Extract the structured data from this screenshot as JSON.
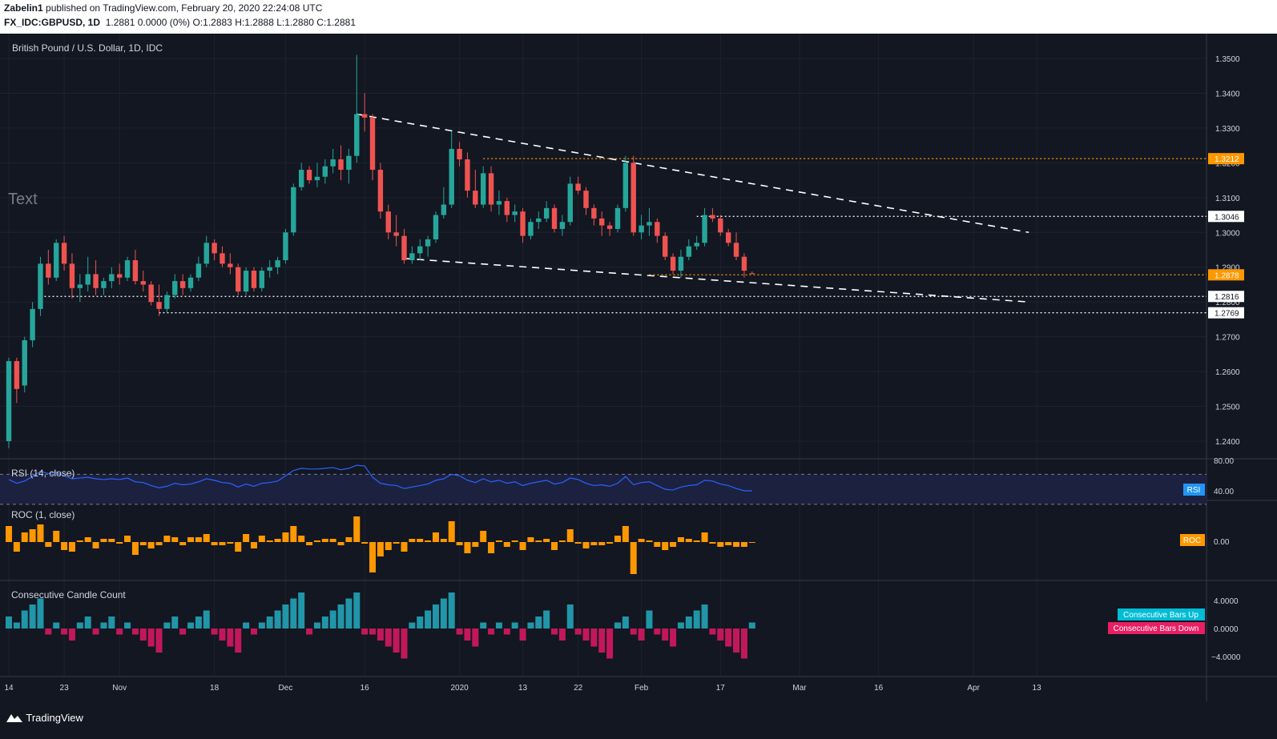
{
  "header": {
    "author": "Zabelin1",
    "published_text": "published on TradingView.com, February 20, 2020 22:24:08 UTC",
    "symbol_line": {
      "symbol": "FX_IDC:GBPUSD, 1D",
      "change": "1.2881 0.0000 (0%)",
      "open_label": "O:",
      "open": "1.2883",
      "high_label": "H:",
      "high": "1.2888",
      "low_label": "L:",
      "low": "1.2880",
      "close_label": "C:",
      "close": "1.2881"
    }
  },
  "main_pane": {
    "title": "British Pound / U.S. Dollar, 1D, IDC",
    "annotation_text": "Text",
    "price_ticks": [
      "1.2400",
      "1.2500",
      "1.2600",
      "1.2700",
      "1.2800",
      "1.2900",
      "1.3000",
      "1.3100",
      "1.3200",
      "1.3300",
      "1.3400",
      "1.3500"
    ],
    "price_labels": [
      {
        "value": 1.3212,
        "text": "1.3212",
        "style": "orange"
      },
      {
        "value": 1.3046,
        "text": "1.3046",
        "style": "white"
      },
      {
        "value": 1.2878,
        "text": "1.2878",
        "style": "orange"
      },
      {
        "value": 1.2816,
        "text": "1.2816",
        "style": "white"
      },
      {
        "value": 1.2769,
        "text": "1.2769",
        "style": "white"
      }
    ]
  },
  "rsi_pane": {
    "title": "RSI (14, close)",
    "tag": "RSI",
    "ticks": [
      "80.00",
      "40.00"
    ]
  },
  "roc_pane": {
    "title": "ROC (1, close)",
    "tag": "ROC",
    "ticks": [
      "0.00"
    ]
  },
  "ccc_pane": {
    "title": "Consecutive Candle Count",
    "legend_up": "Consecutive Bars Up",
    "legend_down": "Consecutive Bars Down",
    "ticks": [
      "4.0000",
      "0.0000",
      "−4.0000"
    ]
  },
  "time_axis": {
    "labels": [
      {
        "text": "14",
        "bar": 0
      },
      {
        "text": "23",
        "bar": 7
      },
      {
        "text": "Nov",
        "bar": 14
      },
      {
        "text": "18",
        "bar": 26
      },
      {
        "text": "Dec",
        "bar": 35
      },
      {
        "text": "16",
        "bar": 45
      },
      {
        "text": "2020",
        "bar": 57
      },
      {
        "text": "13",
        "bar": 65
      },
      {
        "text": "22",
        "bar": 72
      },
      {
        "text": "Feb",
        "bar": 80
      },
      {
        "text": "17",
        "bar": 90
      },
      {
        "text": "Mar",
        "bar": 100
      },
      {
        "text": "16",
        "bar": 110
      },
      {
        "text": "Apr",
        "bar": 122
      },
      {
        "text": "13",
        "bar": 130
      }
    ]
  },
  "colors": {
    "up": "#26a69a",
    "down": "#ef5350",
    "orange": "#ff9800",
    "rsi": "#2962ff",
    "ccc_up": "#2196a8",
    "ccc_down": "#c2185b",
    "background": "#131722"
  },
  "footer": {
    "brand": "TradingView"
  },
  "chart_data": {
    "type": "candlestick",
    "symbol": "GBPUSD",
    "interval": "1D",
    "ylim": [
      1.24,
      1.352
    ],
    "bars": [
      [
        1.24,
        1.264,
        1.238,
        1.263
      ],
      [
        1.263,
        1.264,
        1.251,
        1.255
      ],
      [
        1.256,
        1.27,
        1.254,
        1.269
      ],
      [
        1.269,
        1.28,
        1.267,
        1.278
      ],
      [
        1.278,
        1.293,
        1.276,
        1.291
      ],
      [
        1.291,
        1.295,
        1.285,
        1.287
      ],
      [
        1.287,
        1.298,
        1.286,
        1.297
      ],
      [
        1.297,
        1.299,
        1.289,
        1.291
      ],
      [
        1.291,
        1.294,
        1.281,
        1.284
      ],
      [
        1.284,
        1.288,
        1.28,
        1.285
      ],
      [
        1.285,
        1.293,
        1.283,
        1.288
      ],
      [
        1.288,
        1.292,
        1.282,
        1.284
      ],
      [
        1.284,
        1.287,
        1.282,
        1.286
      ],
      [
        1.286,
        1.29,
        1.284,
        1.288
      ],
      [
        1.288,
        1.291,
        1.285,
        1.287
      ],
      [
        1.287,
        1.293,
        1.286,
        1.292
      ],
      [
        1.292,
        1.295,
        1.285,
        1.286
      ],
      [
        1.286,
        1.289,
        1.283,
        1.285
      ],
      [
        1.285,
        1.286,
        1.279,
        1.28
      ],
      [
        1.28,
        1.285,
        1.276,
        1.278
      ],
      [
        1.278,
        1.283,
        1.277,
        1.282
      ],
      [
        1.282,
        1.288,
        1.281,
        1.286
      ],
      [
        1.286,
        1.288,
        1.282,
        1.284
      ],
      [
        1.284,
        1.288,
        1.283,
        1.287
      ],
      [
        1.287,
        1.293,
        1.286,
        1.291
      ],
      [
        1.291,
        1.299,
        1.29,
        1.297
      ],
      [
        1.297,
        1.298,
        1.292,
        1.294
      ],
      [
        1.294,
        1.296,
        1.29,
        1.291
      ],
      [
        1.291,
        1.294,
        1.288,
        1.29
      ],
      [
        1.29,
        1.291,
        1.282,
        1.283
      ],
      [
        1.283,
        1.29,
        1.282,
        1.289
      ],
      [
        1.289,
        1.29,
        1.283,
        1.284
      ],
      [
        1.284,
        1.29,
        1.283,
        1.289
      ],
      [
        1.289,
        1.292,
        1.287,
        1.29
      ],
      [
        1.29,
        1.293,
        1.288,
        1.292
      ],
      [
        1.292,
        1.301,
        1.291,
        1.3
      ],
      [
        1.3,
        1.314,
        1.299,
        1.313
      ],
      [
        1.313,
        1.32,
        1.312,
        1.318
      ],
      [
        1.318,
        1.319,
        1.314,
        1.315
      ],
      [
        1.315,
        1.32,
        1.313,
        1.316
      ],
      [
        1.316,
        1.321,
        1.314,
        1.319
      ],
      [
        1.319,
        1.324,
        1.317,
        1.321
      ],
      [
        1.321,
        1.325,
        1.315,
        1.318
      ],
      [
        1.318,
        1.324,
        1.314,
        1.322
      ],
      [
        1.322,
        1.351,
        1.32,
        1.334
      ],
      [
        1.334,
        1.34,
        1.329,
        1.333
      ],
      [
        1.333,
        1.334,
        1.315,
        1.318
      ],
      [
        1.318,
        1.32,
        1.304,
        1.306
      ],
      [
        1.306,
        1.308,
        1.298,
        1.3
      ],
      [
        1.3,
        1.305,
        1.296,
        1.299
      ],
      [
        1.299,
        1.301,
        1.291,
        1.292
      ],
      [
        1.292,
        1.296,
        1.291,
        1.294
      ],
      [
        1.294,
        1.298,
        1.292,
        1.296
      ],
      [
        1.296,
        1.299,
        1.293,
        1.298
      ],
      [
        1.298,
        1.306,
        1.297,
        1.305
      ],
      [
        1.305,
        1.313,
        1.304,
        1.308
      ],
      [
        1.308,
        1.329,
        1.307,
        1.324
      ],
      [
        1.324,
        1.326,
        1.319,
        1.321
      ],
      [
        1.321,
        1.323,
        1.31,
        1.312
      ],
      [
        1.312,
        1.318,
        1.307,
        1.308
      ],
      [
        1.308,
        1.319,
        1.307,
        1.317
      ],
      [
        1.317,
        1.319,
        1.306,
        1.308
      ],
      [
        1.308,
        1.312,
        1.305,
        1.309
      ],
      [
        1.309,
        1.31,
        1.303,
        1.305
      ],
      [
        1.305,
        1.308,
        1.303,
        1.306
      ],
      [
        1.306,
        1.307,
        1.297,
        1.299
      ],
      [
        1.299,
        1.304,
        1.298,
        1.303
      ],
      [
        1.303,
        1.306,
        1.301,
        1.304
      ],
      [
        1.304,
        1.309,
        1.303,
        1.307
      ],
      [
        1.307,
        1.308,
        1.3,
        1.301
      ],
      [
        1.301,
        1.305,
        1.299,
        1.303
      ],
      [
        1.303,
        1.316,
        1.302,
        1.314
      ],
      [
        1.314,
        1.316,
        1.311,
        1.312
      ],
      [
        1.312,
        1.313,
        1.305,
        1.307
      ],
      [
        1.307,
        1.308,
        1.302,
        1.304
      ],
      [
        1.304,
        1.306,
        1.299,
        1.302
      ],
      [
        1.302,
        1.303,
        1.299,
        1.301
      ],
      [
        1.301,
        1.308,
        1.3,
        1.307
      ],
      [
        1.307,
        1.322,
        1.306,
        1.32
      ],
      [
        1.32,
        1.322,
        1.299,
        1.3
      ],
      [
        1.3,
        1.305,
        1.298,
        1.302
      ],
      [
        1.302,
        1.307,
        1.299,
        1.303
      ],
      [
        1.303,
        1.304,
        1.297,
        1.299
      ],
      [
        1.299,
        1.3,
        1.292,
        1.293
      ],
      [
        1.293,
        1.294,
        1.288,
        1.289
      ],
      [
        1.289,
        1.295,
        1.287,
        1.293
      ],
      [
        1.293,
        1.298,
        1.292,
        1.296
      ],
      [
        1.296,
        1.299,
        1.295,
        1.297
      ],
      [
        1.297,
        1.307,
        1.296,
        1.305
      ],
      [
        1.305,
        1.307,
        1.303,
        1.304
      ],
      [
        1.304,
        1.305,
        1.299,
        1.3
      ],
      [
        1.3,
        1.301,
        1.296,
        1.297
      ],
      [
        1.297,
        1.3,
        1.292,
        1.293
      ],
      [
        1.293,
        1.294,
        1.287,
        1.289
      ],
      [
        1.2883,
        1.2888,
        1.288,
        1.2881
      ]
    ],
    "trendlines": [
      {
        "from_bar": 44,
        "from_price": 1.334,
        "to_bar": 129,
        "to_price": 1.3,
        "style": "white-dashed"
      },
      {
        "from_bar": 50,
        "from_price": 1.2925,
        "to_bar": 129,
        "to_price": 1.28,
        "style": "white-dashed"
      }
    ],
    "horizontal_levels": [
      {
        "from_bar": 60,
        "value": 1.3212,
        "style": "orange-dotted"
      },
      {
        "from_bar": 87,
        "value": 1.3046,
        "style": "white-dotted"
      },
      {
        "from_bar": 81,
        "value": 1.2878,
        "style": "orange-dotted"
      },
      {
        "from_bar": 4,
        "value": 1.2816,
        "style": "white-dotted"
      },
      {
        "from_bar": 19,
        "value": 1.2769,
        "style": "white-dotted"
      }
    ],
    "rsi": [
      63,
      58,
      61,
      67,
      74,
      71,
      73,
      68,
      64,
      65,
      66,
      64,
      63,
      64,
      63,
      65,
      60,
      59,
      55,
      52,
      54,
      58,
      56,
      57,
      60,
      64,
      62,
      59,
      58,
      53,
      57,
      54,
      58,
      59,
      61,
      68,
      75,
      78,
      77,
      77,
      78,
      79,
      76,
      78,
      82,
      81,
      66,
      58,
      56,
      55,
      51,
      53,
      55,
      57,
      62,
      64,
      70,
      68,
      62,
      59,
      64,
      60,
      62,
      58,
      60,
      55,
      58,
      60,
      62,
      57,
      59,
      65,
      63,
      58,
      55,
      56,
      54,
      58,
      67,
      56,
      59,
      60,
      55,
      50,
      49,
      53,
      55,
      56,
      62,
      61,
      57,
      55,
      51,
      48,
      48
    ],
    "rsi_levels": [
      70,
      30
    ],
    "roc": [
      1.0,
      -0.6,
      0.6,
      0.8,
      1.1,
      -0.3,
      0.7,
      -0.5,
      -0.6,
      0.1,
      0.3,
      -0.4,
      0.2,
      0.2,
      -0.1,
      0.4,
      -0.8,
      -0.2,
      -0.4,
      -0.2,
      0.4,
      0.3,
      -0.2,
      0.3,
      0.3,
      0.5,
      -0.2,
      -0.2,
      -0.1,
      -0.6,
      0.5,
      -0.4,
      0.4,
      0.1,
      0.2,
      0.6,
      1.0,
      0.4,
      -0.2,
      0.1,
      0.2,
      0.2,
      -0.2,
      0.3,
      1.6,
      -0.1,
      -1.9,
      -0.9,
      -0.5,
      -0.1,
      -0.6,
      0.2,
      0.2,
      0.1,
      0.6,
      0.2,
      1.3,
      -0.2,
      -0.7,
      -0.3,
      0.7,
      -0.7,
      0.1,
      -0.3,
      0.1,
      -0.5,
      0.3,
      0.1,
      0.2,
      -0.5,
      0.1,
      0.8,
      -0.1,
      -0.4,
      -0.2,
      -0.2,
      -0.1,
      0.4,
      1.0,
      -2.0,
      0.2,
      0.1,
      -0.3,
      -0.5,
      -0.3,
      0.3,
      0.2,
      0.1,
      0.6,
      -0.1,
      -0.3,
      -0.2,
      -0.3,
      -0.3,
      0.0
    ],
    "ccc": [
      2,
      1,
      3,
      4,
      5,
      -1,
      1,
      -1,
      -2,
      1,
      2,
      -1,
      1,
      2,
      -1,
      1,
      -1,
      -2,
      -3,
      -4,
      1,
      2,
      -1,
      1,
      2,
      3,
      -1,
      -2,
      -3,
      -4,
      1,
      -1,
      1,
      2,
      3,
      4,
      5,
      6,
      -1,
      1,
      2,
      3,
      4,
      5,
      6,
      -1,
      -1,
      -2,
      -3,
      -4,
      -5,
      1,
      2,
      3,
      4,
      5,
      6,
      -1,
      -2,
      -3,
      1,
      -1,
      1,
      -1,
      1,
      -2,
      1,
      2,
      3,
      -1,
      -2,
      4,
      -1,
      -2,
      -3,
      -4,
      -5,
      1,
      2,
      -1,
      -2,
      3,
      -1,
      -2,
      -3,
      1,
      2,
      3,
      4,
      -1,
      -2,
      -3,
      -4,
      -5,
      1
    ]
  }
}
